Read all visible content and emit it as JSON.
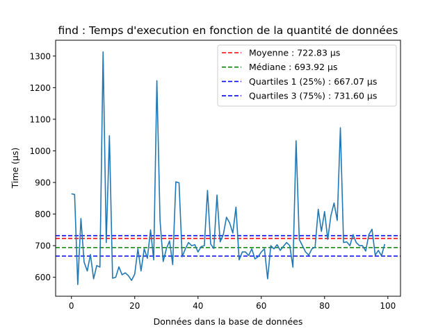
{
  "chart_data": {
    "type": "line",
    "title": "find : Temps d'execution en fonction de la quantité de données",
    "xlabel": "Données dans la base de données",
    "ylabel": "Time (µs)",
    "xlim": [
      -5,
      104
    ],
    "ylim": [
      540,
      1350
    ],
    "xticks": [
      0,
      20,
      40,
      60,
      80,
      100
    ],
    "yticks": [
      600,
      700,
      800,
      900,
      1000,
      1100,
      1200,
      1300
    ],
    "grid": false,
    "legend_position": "top-right",
    "series": [
      {
        "color": "#1f77b4",
        "x": [
          0,
          1,
          2,
          3,
          4,
          5,
          6,
          7,
          8,
          9,
          10,
          11,
          12,
          13,
          14,
          15,
          16,
          17,
          18,
          19,
          20,
          21,
          22,
          23,
          24,
          25,
          26,
          27,
          28,
          29,
          30,
          31,
          32,
          33,
          34,
          35,
          36,
          37,
          38,
          39,
          40,
          41,
          42,
          43,
          44,
          45,
          46,
          47,
          48,
          49,
          50,
          51,
          52,
          53,
          54,
          55,
          56,
          57,
          58,
          59,
          60,
          61,
          62,
          63,
          64,
          65,
          66,
          67,
          68,
          69,
          70,
          71,
          72,
          73,
          74,
          75,
          76,
          77,
          78,
          79,
          80,
          81,
          82,
          83,
          84,
          85,
          86,
          87,
          88,
          89,
          90,
          91,
          92,
          93,
          94,
          95,
          96,
          97,
          98,
          99
        ],
        "values": [
          864,
          862,
          577,
          786,
          648,
          620,
          672,
          595,
          637,
          632,
          1313,
          710,
          1048,
          597,
          600,
          633,
          608,
          614,
          605,
          590,
          610,
          690,
          620,
          690,
          660,
          750,
          655,
          1222,
          780,
          650,
          690,
          715,
          640,
          902,
          899,
          665,
          690,
          710,
          700,
          703,
          680,
          697,
          700,
          875,
          705,
          691,
          860,
          712,
          735,
          790,
          772,
          740,
          822,
          655,
          680,
          680,
          669,
          690,
          658,
          665,
          680,
          690,
          595,
          700,
          690,
          703,
          685,
          698,
          710,
          700,
          632,
          1032,
          720,
          700,
          680,
          670,
          690,
          695,
          815,
          745,
          808,
          720,
          795,
          835,
          780,
          1073,
          710,
          712,
          700,
          735,
          710,
          700,
          700,
          683,
          735,
          752,
          670,
          685,
          668,
          705
        ]
      }
    ],
    "reference_lines": [
      {
        "label": "Moyenne : 722.83 µs",
        "value": 722.83,
        "color": "#ff0000"
      },
      {
        "label": "Médiane : 693.92 µs",
        "value": 693.92,
        "color": "#008000"
      },
      {
        "label": "Quartiles 1 (25%) : 667.07 µs",
        "value": 667.07,
        "color": "#0000ff"
      },
      {
        "label": "Quartiles 3 (75%) : 731.60 µs",
        "value": 731.6,
        "color": "#0000ff"
      }
    ]
  }
}
